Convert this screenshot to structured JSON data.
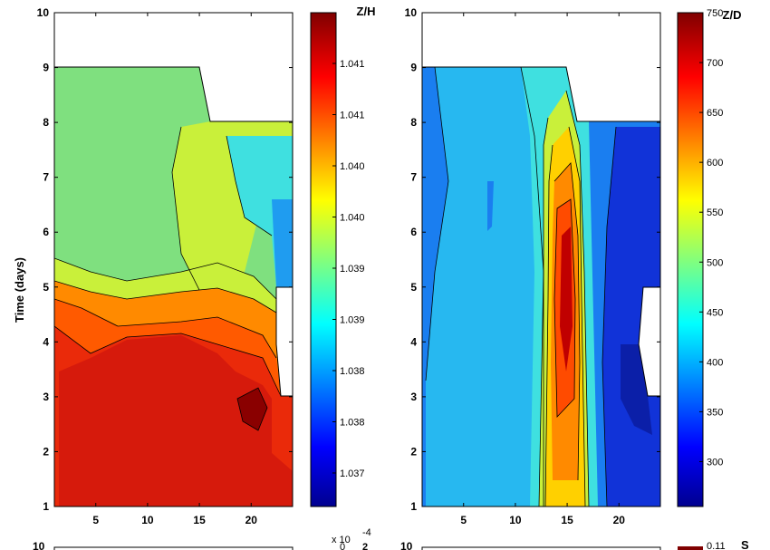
{
  "chart_data": [
    {
      "type": "heatmap",
      "ylabel": "Time (days)",
      "x_ticks": [
        "5",
        "10",
        "15",
        "20"
      ],
      "y_ticks": [
        "1",
        "2",
        "3",
        "4",
        "5",
        "6",
        "7",
        "8",
        "9",
        "10"
      ],
      "xlim": [
        1,
        24
      ],
      "ylim": [
        1,
        10
      ],
      "colorbar": {
        "title": "Z/H",
        "ticks": [
          "1.041",
          "1.041",
          "1.040",
          "1.040",
          "1.039",
          "1.039",
          "1.038",
          "1.038",
          "1.037"
        ],
        "colormap": "jet"
      },
      "field_summary": [
        {
          "days": [
            1,
            4.5
          ],
          "level": "high",
          "color": "#d61a0c"
        },
        {
          "days": [
            4.5,
            5.3
          ],
          "level": "mid-high",
          "color": "#ff8a00"
        },
        {
          "days": [
            5.3,
            9
          ],
          "level": "mid",
          "color": "#7fe07f"
        }
      ]
    },
    {
      "type": "heatmap",
      "x_ticks": [
        "5",
        "10",
        "15",
        "20"
      ],
      "y_ticks": [
        "1",
        "2",
        "3",
        "4",
        "5",
        "6",
        "7",
        "8",
        "9",
        "10"
      ],
      "xlim": [
        1,
        24
      ],
      "ylim": [
        1,
        10
      ],
      "colorbar": {
        "title": "Z/D",
        "ticks": [
          "750",
          "700",
          "650",
          "600",
          "550",
          "500",
          "450",
          "400",
          "350",
          "300"
        ],
        "range": [
          255,
          750
        ],
        "colormap": "jet"
      },
      "field_summary": [
        {
          "x": [
            1,
            13
          ],
          "level": "low-mid",
          "color": "#27b8f0"
        },
        {
          "x": [
            13,
            17
          ],
          "level": "high",
          "color": "#ff4b00"
        },
        {
          "x": [
            18,
            24
          ],
          "level": "low",
          "color": "#1133d8"
        }
      ]
    }
  ],
  "bottom_fragment": {
    "exponent_label": "x 10",
    "exponent_power": "-4",
    "left_value": "0",
    "right_value": "2",
    "top_label_left": "10",
    "top_label_right": "10",
    "colorbar_value": "0.11",
    "colorbar_title": "S"
  }
}
